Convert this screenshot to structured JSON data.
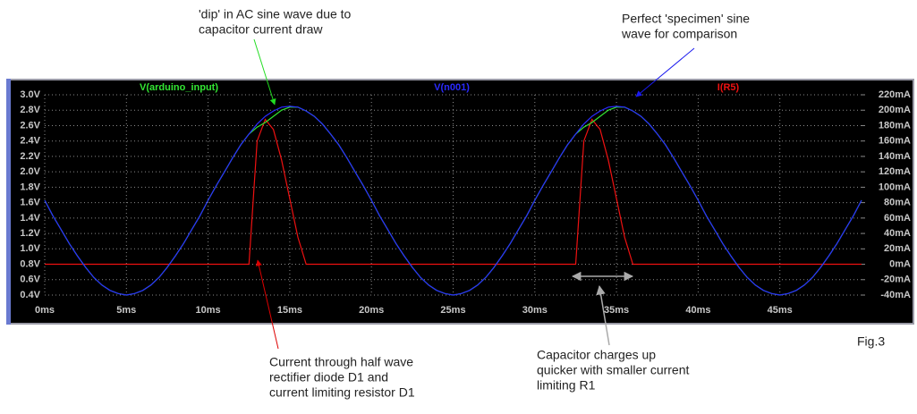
{
  "chart_data": {
    "type": "line",
    "x": [
      0,
      0.5,
      1,
      1.5,
      2,
      2.5,
      3,
      3.5,
      4,
      4.5,
      5,
      5.5,
      6,
      6.5,
      7,
      7.5,
      8,
      8.5,
      9,
      9.5,
      10,
      10.5,
      11,
      11.5,
      12,
      12.5,
      13,
      13.5,
      14,
      14.5,
      15,
      15.5,
      16,
      16.5,
      17,
      17.5,
      18,
      18.5,
      19,
      19.5,
      20,
      20.5,
      21,
      21.5,
      22,
      22.5,
      23,
      23.5,
      24,
      24.5,
      25,
      25.5,
      26,
      26.5,
      27,
      27.5,
      28,
      28.5,
      29,
      29.5,
      30,
      30.5,
      31,
      31.5,
      32,
      32.5,
      33,
      33.5,
      34,
      34.5,
      35,
      35.5,
      36,
      36.5,
      37,
      37.5,
      38,
      38.5,
      39,
      39.5,
      40,
      40.5,
      41,
      41.5,
      42,
      42.5,
      43,
      43.5,
      44,
      44.5,
      45,
      45.5,
      46,
      46.5,
      47,
      47.5,
      48,
      48.5,
      49,
      49.5,
      50
    ],
    "xlim": [
      0,
      50
    ],
    "xticks": [
      {
        "value": 0,
        "label": "0ms"
      },
      {
        "value": 5,
        "label": "5ms"
      },
      {
        "value": 10,
        "label": "10ms"
      },
      {
        "value": 15,
        "label": "15ms"
      },
      {
        "value": 20,
        "label": "20ms"
      },
      {
        "value": 25,
        "label": "25ms"
      },
      {
        "value": 30,
        "label": "30ms"
      },
      {
        "value": 35,
        "label": "35ms"
      },
      {
        "value": 40,
        "label": "40ms"
      },
      {
        "value": 45,
        "label": "45ms"
      }
    ],
    "ylim": [
      0.4,
      3.0
    ],
    "yticks": [
      {
        "value": 0.4,
        "label": "0.4V"
      },
      {
        "value": 0.6,
        "label": "0.6V"
      },
      {
        "value": 0.8,
        "label": "0.8V"
      },
      {
        "value": 1.0,
        "label": "1.0V"
      },
      {
        "value": 1.2,
        "label": "1.2V"
      },
      {
        "value": 1.4,
        "label": "1.4V"
      },
      {
        "value": 1.6,
        "label": "1.6V"
      },
      {
        "value": 1.8,
        "label": "1.8V"
      },
      {
        "value": 2.0,
        "label": "2.0V"
      },
      {
        "value": 2.2,
        "label": "2.2V"
      },
      {
        "value": 2.4,
        "label": "2.4V"
      },
      {
        "value": 2.6,
        "label": "2.6V"
      },
      {
        "value": 2.8,
        "label": "2.8V"
      },
      {
        "value": 3.0,
        "label": "3.0V"
      }
    ],
    "y2lim": [
      -40,
      220
    ],
    "y2ticks": [
      {
        "value": -40,
        "label": "-40mA"
      },
      {
        "value": -20,
        "label": "-20mA"
      },
      {
        "value": 0,
        "label": "0mA"
      },
      {
        "value": 20,
        "label": "20mA"
      },
      {
        "value": 40,
        "label": "40mA"
      },
      {
        "value": 60,
        "label": "60mA"
      },
      {
        "value": 80,
        "label": "80mA"
      },
      {
        "value": 100,
        "label": "100mA"
      },
      {
        "value": 120,
        "label": "120mA"
      },
      {
        "value": 140,
        "label": "140mA"
      },
      {
        "value": 160,
        "label": "160mA"
      },
      {
        "value": 180,
        "label": "180mA"
      },
      {
        "value": 200,
        "label": "200mA"
      },
      {
        "value": 220,
        "label": "220mA"
      }
    ],
    "grid": true,
    "series": [
      {
        "name": "V(arduino_input)",
        "color": "#33e633",
        "values": [
          1.63,
          1.43,
          1.25,
          1.07,
          0.91,
          0.76,
          0.63,
          0.53,
          0.46,
          0.42,
          0.4,
          0.42,
          0.46,
          0.53,
          0.63,
          0.76,
          0.91,
          1.07,
          1.25,
          1.43,
          1.63,
          1.82,
          2.0,
          2.18,
          2.35,
          2.49,
          2.58,
          2.64,
          2.72,
          2.8,
          2.84,
          2.84,
          2.79,
          2.72,
          2.62,
          2.49,
          2.35,
          2.18,
          2.0,
          1.82,
          1.63,
          1.43,
          1.25,
          1.07,
          0.91,
          0.76,
          0.63,
          0.53,
          0.46,
          0.42,
          0.4,
          0.42,
          0.46,
          0.53,
          0.63,
          0.76,
          0.91,
          1.07,
          1.25,
          1.43,
          1.63,
          1.82,
          2.0,
          2.18,
          2.35,
          2.49,
          2.58,
          2.64,
          2.72,
          2.8,
          2.84,
          2.84,
          2.79,
          2.72,
          2.62,
          2.49,
          2.35,
          2.18,
          2.0,
          1.82,
          1.63,
          1.43,
          1.25,
          1.07,
          0.91,
          0.76,
          0.63,
          0.53,
          0.46,
          0.42,
          0.4,
          0.42,
          0.46,
          0.53,
          0.63,
          0.76,
          0.91,
          1.07,
          1.25,
          1.43,
          1.63
        ]
      },
      {
        "name": "V(n001)",
        "color": "#2a2aff",
        "values": [
          1.63,
          1.43,
          1.25,
          1.07,
          0.91,
          0.76,
          0.63,
          0.53,
          0.46,
          0.42,
          0.4,
          0.42,
          0.46,
          0.53,
          0.63,
          0.76,
          0.91,
          1.07,
          1.25,
          1.43,
          1.63,
          1.82,
          2.0,
          2.18,
          2.35,
          2.49,
          2.62,
          2.72,
          2.79,
          2.84,
          2.85,
          2.84,
          2.79,
          2.72,
          2.62,
          2.49,
          2.35,
          2.18,
          2.0,
          1.82,
          1.63,
          1.43,
          1.25,
          1.07,
          0.91,
          0.76,
          0.63,
          0.53,
          0.46,
          0.42,
          0.4,
          0.42,
          0.46,
          0.53,
          0.63,
          0.76,
          0.91,
          1.07,
          1.25,
          1.43,
          1.63,
          1.82,
          2.0,
          2.18,
          2.35,
          2.49,
          2.62,
          2.72,
          2.79,
          2.84,
          2.85,
          2.84,
          2.79,
          2.72,
          2.62,
          2.49,
          2.35,
          2.18,
          2.0,
          1.82,
          1.63,
          1.43,
          1.25,
          1.07,
          0.91,
          0.76,
          0.63,
          0.53,
          0.46,
          0.42,
          0.4,
          0.42,
          0.46,
          0.53,
          0.63,
          0.76,
          0.91,
          1.07,
          1.25,
          1.43,
          1.63
        ]
      },
      {
        "name": "I(R5)",
        "color": "#ee1111",
        "axis": "y2",
        "values": [
          0,
          0,
          0,
          0,
          0,
          0,
          0,
          0,
          0,
          0,
          0,
          0,
          0,
          0,
          0,
          0,
          0,
          0,
          0,
          0,
          0,
          0,
          0,
          0,
          0,
          0,
          160,
          188,
          175,
          135,
          85,
          35,
          0,
          0,
          0,
          0,
          0,
          0,
          0,
          0,
          0,
          0,
          0,
          0,
          0,
          0,
          0,
          0,
          0,
          0,
          0,
          0,
          0,
          0,
          0,
          0,
          0,
          0,
          0,
          0,
          0,
          0,
          0,
          0,
          0,
          0,
          160,
          188,
          175,
          135,
          85,
          35,
          0,
          0,
          0,
          0,
          0,
          0,
          0,
          0,
          0,
          0,
          0,
          0,
          0,
          0,
          0,
          0,
          0,
          0,
          0,
          0,
          0,
          0,
          0,
          0,
          0,
          0,
          0,
          0,
          0
        ]
      }
    ],
    "annotations": [
      {
        "lines": [
          "'dip' in AC sine wave due to",
          "capacitor current draw"
        ]
      },
      {
        "lines": [
          "Perfect 'specimen' sine",
          "wave for comparison"
        ]
      },
      {
        "lines": [
          "Current through half wave",
          "rectifier diode D1 and",
          "current limiting resistor D1"
        ]
      },
      {
        "lines": [
          "Capacitor charges up",
          "quicker with smaller current",
          "limiting R1"
        ]
      },
      {
        "lines": [
          "Fig.3"
        ]
      }
    ]
  }
}
